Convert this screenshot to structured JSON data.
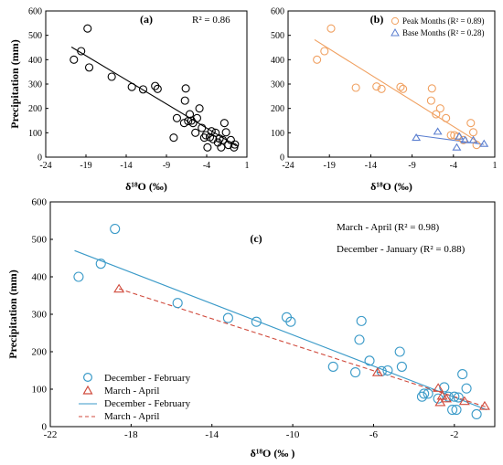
{
  "chart_data": [
    {
      "id": "a",
      "type": "scatter",
      "panel_label": "(a)",
      "annotation": "R² = 0.86",
      "xlabel": "δ¹⁸O (‰)",
      "ylabel": "Precipitation (mm)",
      "xlim": [
        -24,
        1
      ],
      "ylim": [
        0,
        600
      ],
      "x_ticks": [
        -24,
        -19,
        -14,
        -9,
        -4,
        1
      ],
      "y_ticks": [
        0,
        100,
        200,
        300,
        400,
        500,
        600
      ],
      "grid": false,
      "colors": {
        "marker": "#000000",
        "line": "#000000"
      },
      "series": [
        {
          "points": [
            [
              -20.5,
              400
            ],
            [
              -19.6,
              435
            ],
            [
              -18.8,
              528
            ],
            [
              -18.6,
              368
            ],
            [
              -15.8,
              330
            ],
            [
              -13.3,
              288
            ],
            [
              -11.9,
              278
            ],
            [
              -10.4,
              292
            ],
            [
              -10.1,
              280
            ],
            [
              -8.1,
              80
            ],
            [
              -7.7,
              160
            ],
            [
              -6.8,
              140
            ],
            [
              -6.7,
              232
            ],
            [
              -6.6,
              282
            ],
            [
              -6.3,
              148
            ],
            [
              -6.1,
              176
            ],
            [
              -5.9,
              150
            ],
            [
              -5.7,
              140
            ],
            [
              -5.4,
              100
            ],
            [
              -5.2,
              160
            ],
            [
              -4.9,
              200
            ],
            [
              -4.6,
              120
            ],
            [
              -4.3,
              80
            ],
            [
              -4.1,
              90
            ],
            [
              -3.9,
              40
            ],
            [
              -3.6,
              82
            ],
            [
              -3.4,
              106
            ],
            [
              -3.2,
              74
            ],
            [
              -2.9,
              100
            ],
            [
              -2.6,
              60
            ],
            [
              -2.4,
              76
            ],
            [
              -2.2,
              40
            ],
            [
              -2.0,
              70
            ],
            [
              -1.8,
              140
            ],
            [
              -1.6,
              102
            ],
            [
              -1.3,
              50
            ],
            [
              -1.0,
              70
            ],
            [
              -0.6,
              40
            ],
            [
              -0.5,
              52
            ]
          ]
        }
      ],
      "trendline": {
        "x": [
          -20.8,
          -0.3
        ],
        "y": [
          452,
          46
        ]
      }
    },
    {
      "id": "b",
      "type": "scatter",
      "panel_label": "(b)",
      "xlabel": "δ¹⁸O (‰)",
      "ylabel": "",
      "xlim": [
        -24,
        1
      ],
      "ylim": [
        0,
        600
      ],
      "x_ticks": [
        -24,
        -19,
        -14,
        -9,
        -4,
        1
      ],
      "y_ticks": [
        0,
        100,
        200,
        300,
        400,
        500,
        600
      ],
      "grid": false,
      "legend_position": "top-right",
      "series": [
        {
          "name": "Peak Months (R² = 0.89)",
          "marker": "circle",
          "color": "#f0a060",
          "points": [
            [
              -20.5,
              400
            ],
            [
              -19.6,
              435
            ],
            [
              -18.8,
              528
            ],
            [
              -15.8,
              285
            ],
            [
              -13.3,
              290
            ],
            [
              -12.7,
              280
            ],
            [
              -10.4,
              288
            ],
            [
              -10.1,
              280
            ],
            [
              -6.7,
              232
            ],
            [
              -6.6,
              282
            ],
            [
              -6.1,
              176
            ],
            [
              -5.6,
              200
            ],
            [
              -4.9,
              160
            ],
            [
              -4.3,
              90
            ],
            [
              -3.9,
              90
            ],
            [
              -3.5,
              84
            ],
            [
              -2.8,
              70
            ],
            [
              -1.9,
              140
            ],
            [
              -1.6,
              102
            ],
            [
              -1.2,
              50
            ]
          ],
          "trendline": {
            "x": [
              -20.8,
              -1.0
            ],
            "y": [
              482,
              62
            ]
          }
        },
        {
          "name": "Base Months (R² = 0.28)",
          "marker": "triangle",
          "color": "#5b7fd0",
          "points": [
            [
              -8.5,
              80
            ],
            [
              -5.9,
              105
            ],
            [
              -3.6,
              40
            ],
            [
              -3.3,
              85
            ],
            [
              -2.6,
              70
            ],
            [
              -1.6,
              70
            ],
            [
              -0.3,
              55
            ]
          ],
          "trendline": {
            "x": [
              -8.5,
              -0.3
            ],
            "y": [
              90,
              52
            ]
          }
        }
      ]
    },
    {
      "id": "c",
      "type": "scatter",
      "panel_label": "(c)",
      "annotations": [
        "March - April (R² = 0.98)",
        "December - January (R² = 0.88)"
      ],
      "xlabel": "δ¹⁸O (‰ )",
      "ylabel": "Precipitation (mm)",
      "xlim": [
        -22,
        0
      ],
      "ylim": [
        0,
        600
      ],
      "x_ticks": [
        -22,
        -18,
        -14,
        -10,
        -6,
        -2
      ],
      "y_ticks": [
        0,
        100,
        200,
        300,
        400,
        500,
        600
      ],
      "grid": false,
      "legend_position": "bottom-left",
      "series": [
        {
          "name": "December - February",
          "marker": "circle",
          "color": "#3a9ac8",
          "points": [
            [
              -20.6,
              400
            ],
            [
              -19.5,
              435
            ],
            [
              -18.8,
              528
            ],
            [
              -15.7,
              330
            ],
            [
              -13.2,
              290
            ],
            [
              -11.8,
              280
            ],
            [
              -10.3,
              292
            ],
            [
              -10.1,
              280
            ],
            [
              -8.0,
              160
            ],
            [
              -6.9,
              145
            ],
            [
              -6.7,
              232
            ],
            [
              -6.6,
              282
            ],
            [
              -6.2,
              176
            ],
            [
              -5.6,
              148
            ],
            [
              -5.3,
              150
            ],
            [
              -4.7,
              200
            ],
            [
              -4.6,
              160
            ],
            [
              -3.6,
              80
            ],
            [
              -3.5,
              88
            ],
            [
              -3.3,
              88
            ],
            [
              -2.8,
              75
            ],
            [
              -2.5,
              105
            ],
            [
              -2.3,
              80
            ],
            [
              -2.1,
              45
            ],
            [
              -2.0,
              80
            ],
            [
              -1.9,
              45
            ],
            [
              -1.8,
              78
            ],
            [
              -1.6,
              140
            ],
            [
              -1.4,
              102
            ],
            [
              -0.9,
              33
            ]
          ]
        },
        {
          "name": "March - April",
          "marker": "triangle",
          "color": "#d04a3c",
          "points": [
            [
              -18.6,
              368
            ],
            [
              -5.8,
              145
            ],
            [
              -2.8,
              103
            ],
            [
              -2.7,
              65
            ],
            [
              -2.6,
              82
            ],
            [
              -2.4,
              75
            ],
            [
              -1.5,
              68
            ],
            [
              -0.5,
              55
            ]
          ]
        },
        {
          "name": "December - February",
          "type": "line",
          "color": "#3a9ac8",
          "dash": "solid",
          "x": [
            -20.8,
            -0.4
          ],
          "y": [
            470,
            45
          ]
        },
        {
          "name": "March - April",
          "type": "line",
          "color": "#d04a3c",
          "dash": "dashed",
          "x": [
            -18.6,
            -0.4
          ],
          "y": [
            368,
            52
          ]
        }
      ]
    }
  ]
}
